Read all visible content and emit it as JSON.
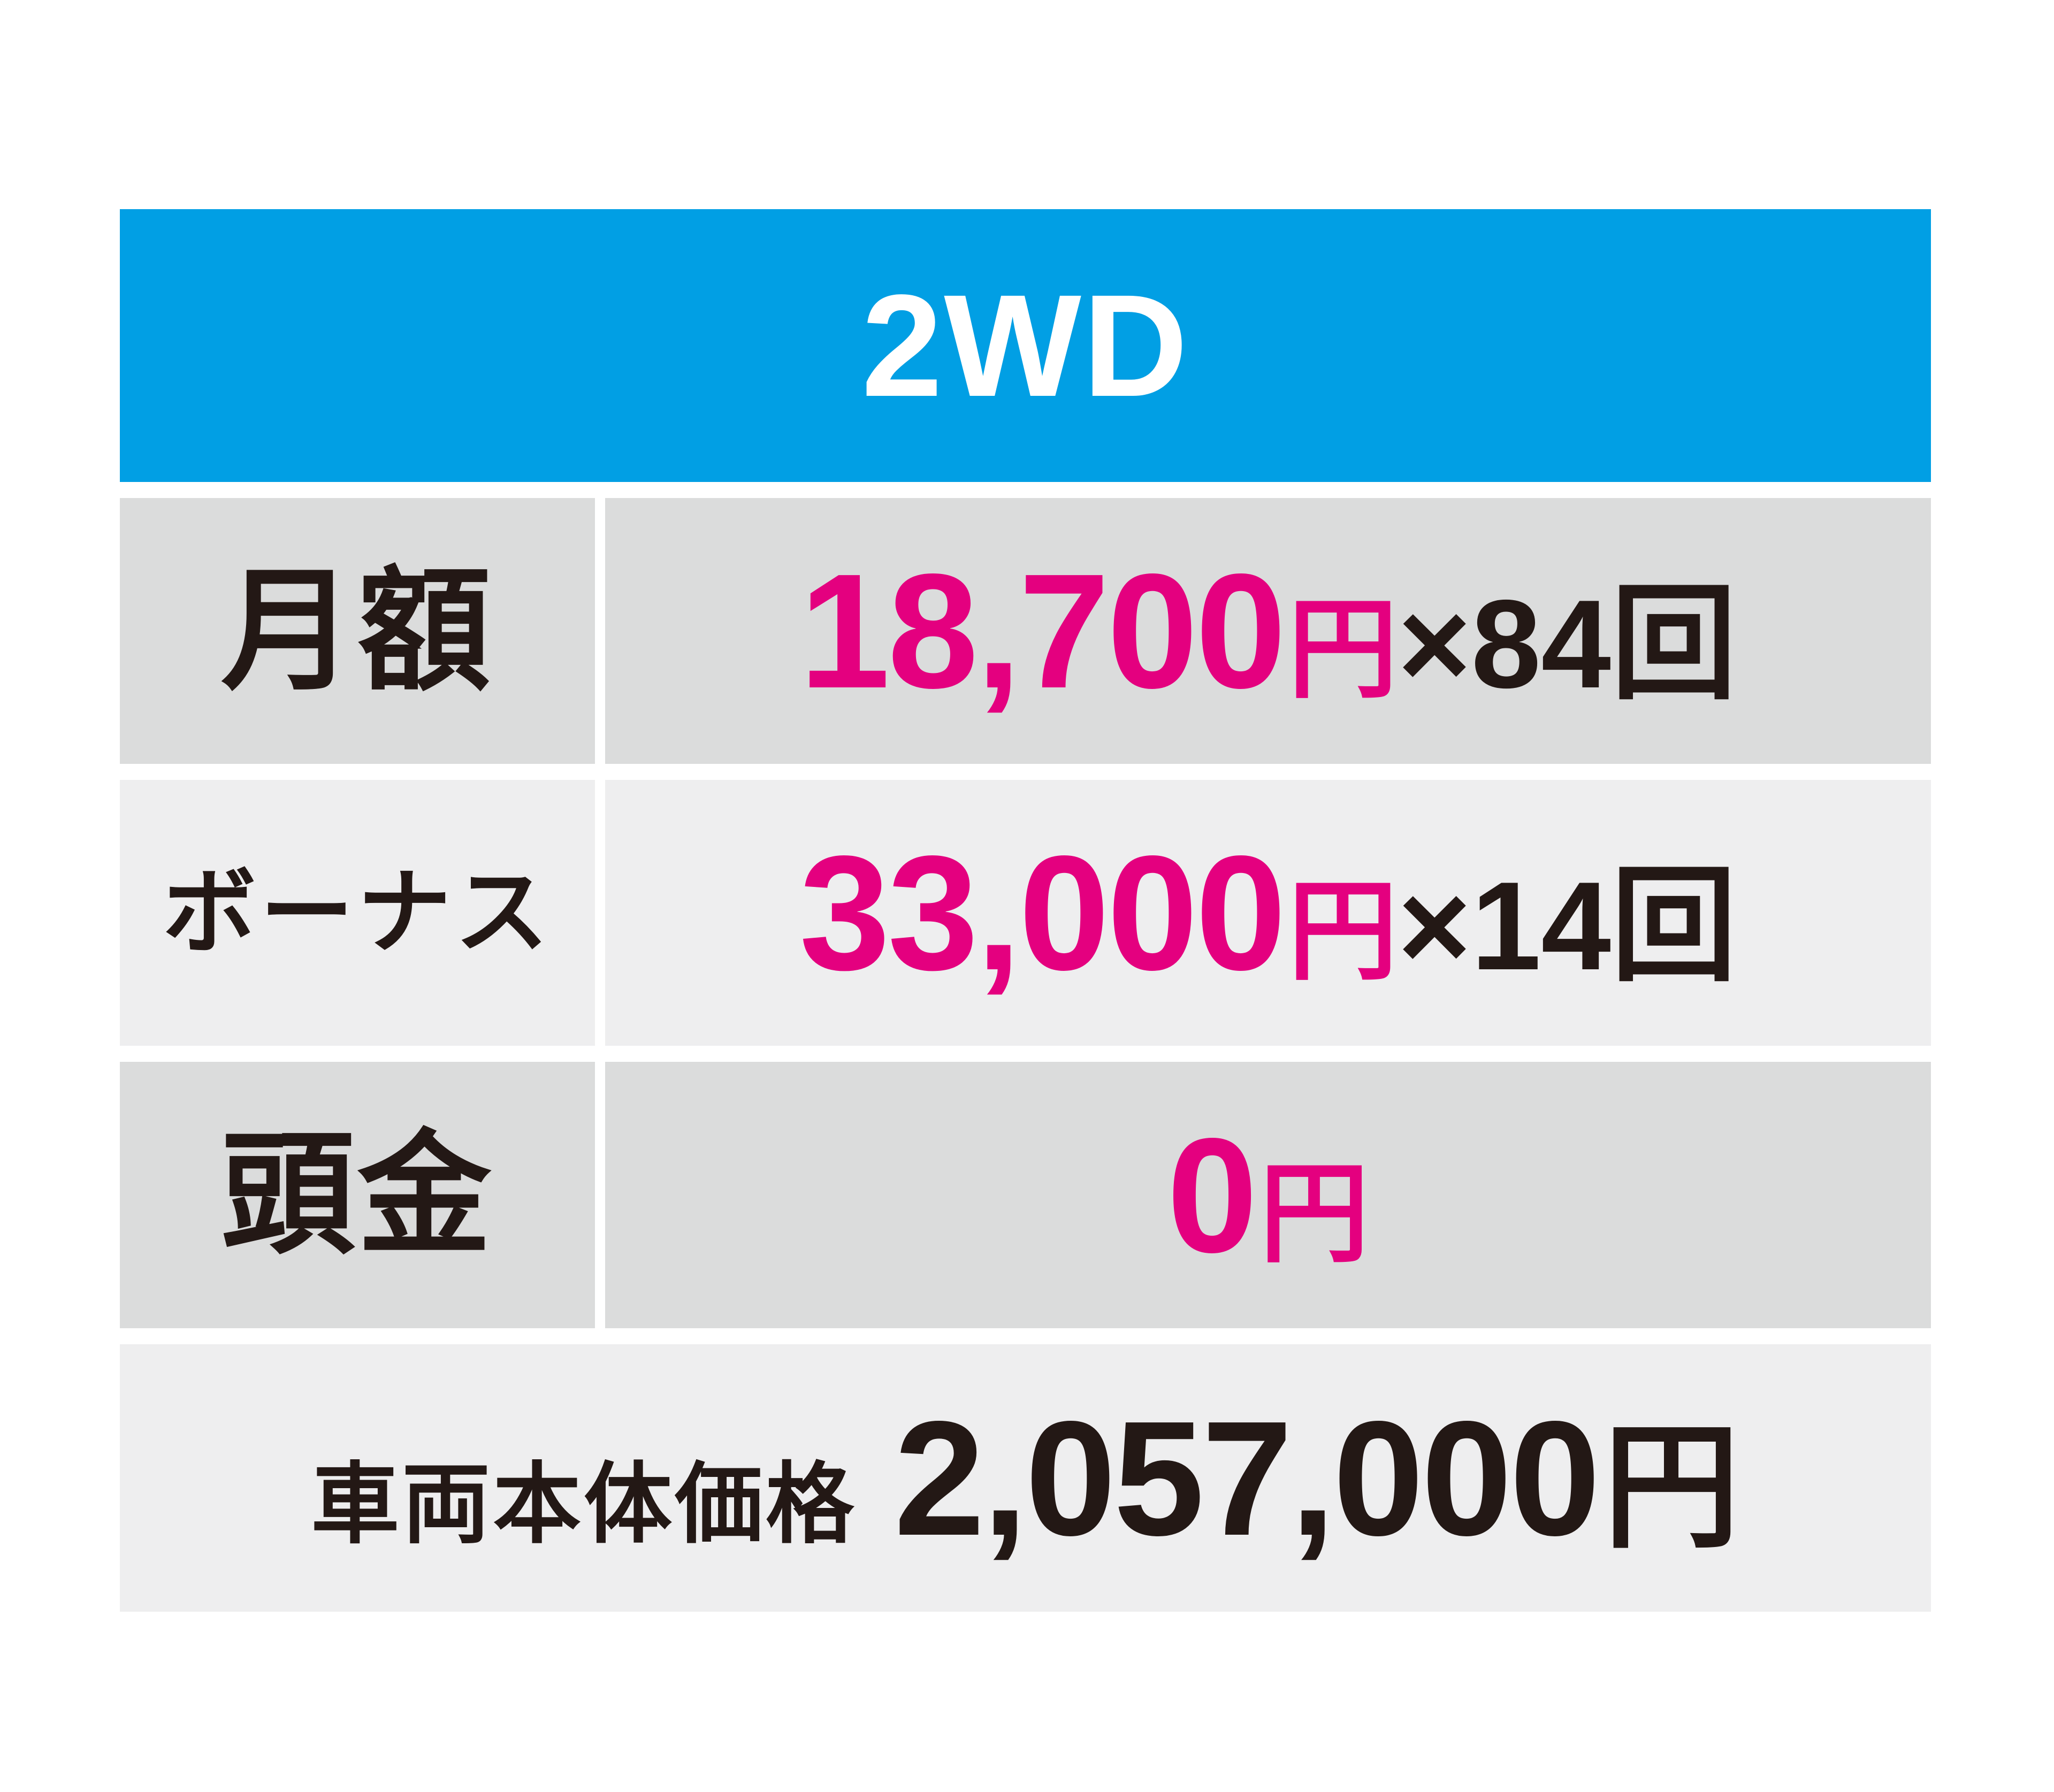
{
  "header": {
    "title": "2WD"
  },
  "rows": [
    {
      "label": "月額",
      "value_main": "18,700",
      "value_unit": "円",
      "value_suffix": "×84回"
    },
    {
      "label": "ボーナス",
      "value_main": "33,000",
      "value_unit": "円",
      "value_suffix": "×14回"
    },
    {
      "label": "頭金",
      "value_main": "0",
      "value_unit": "円",
      "value_suffix": ""
    }
  ],
  "footer": {
    "label": "車両本体価格",
    "price": "2,057,000",
    "unit": "円"
  },
  "colors": {
    "header_bg": "#019fe4",
    "header_text": "#ffffff",
    "row_gray_dark": "#dbdcdc",
    "row_gray_light": "#eeeeef",
    "accent_magenta": "#e4007f",
    "text_dark": "#231815",
    "page_bg": "#ffffff"
  },
  "chart_data": {
    "type": "table",
    "title": "2WD",
    "rows": [
      {
        "label": "月額",
        "value": "18,700円×84回"
      },
      {
        "label": "ボーナス",
        "value": "33,000円×14回"
      },
      {
        "label": "頭金",
        "value": "0円"
      },
      {
        "label": "車両本体価格",
        "value": "2,057,000円"
      }
    ],
    "values": {
      "monthly_payment_yen": 18700,
      "monthly_installments": 84,
      "bonus_payment_yen": 33000,
      "bonus_installments": 14,
      "down_payment_yen": 0,
      "vehicle_base_price_yen": 2057000
    },
    "layout": "header band + 3 label/value rows + full-width footer row, white gaps as separators"
  }
}
